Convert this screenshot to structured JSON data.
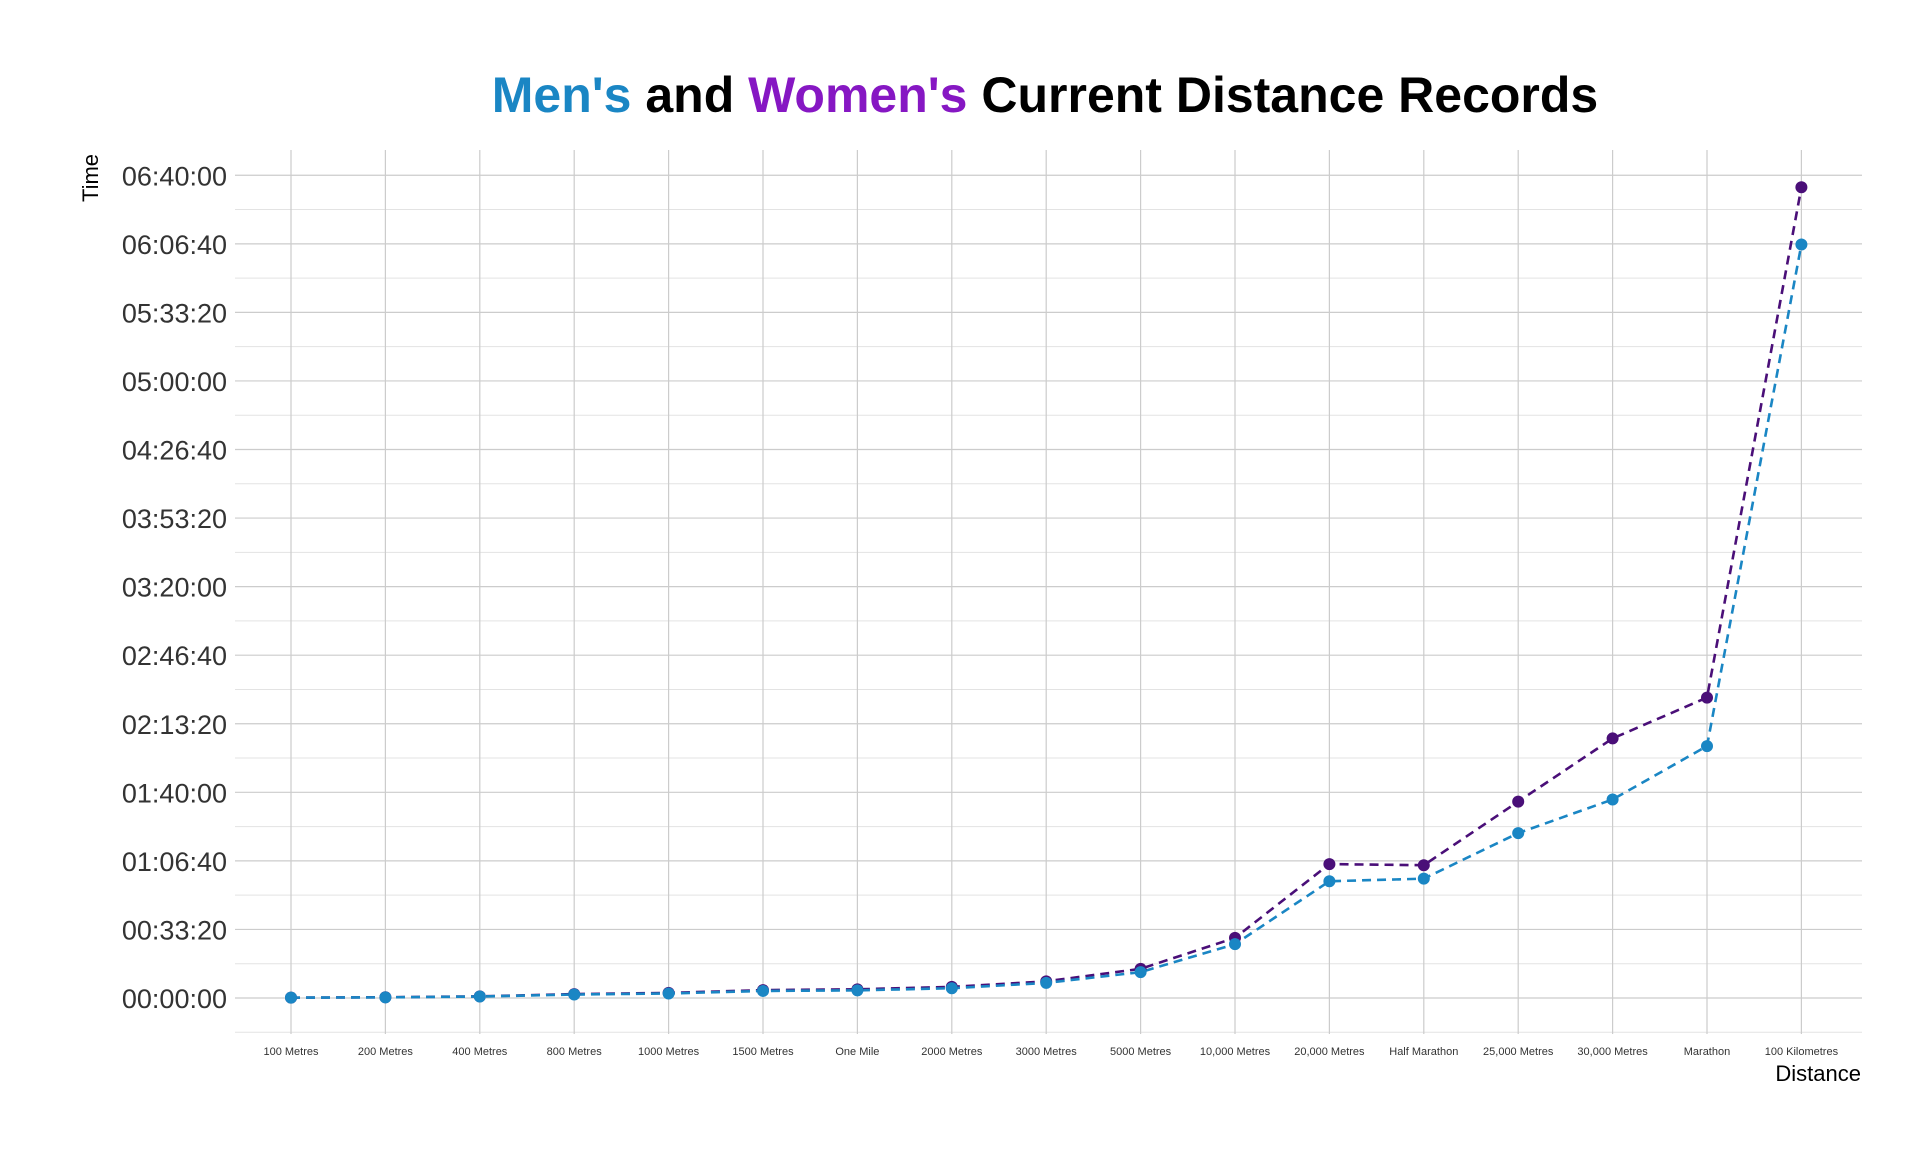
{
  "chart_data": {
    "type": "line",
    "title": {
      "part1": "Men's",
      "part2": " and ",
      "part3": "Women's",
      "part4": " Current Distance Records"
    },
    "xlabel": "Distance",
    "ylabel": "Time",
    "categories": [
      "100 Metres",
      "200 Metres",
      "400 Metres",
      "800 Metres",
      "1000 Metres",
      "1500 Metres",
      "One Mile",
      "2000 Metres",
      "3000 Metres",
      "5000 Metres",
      "10,000 Metres",
      "20,000 Metres",
      "Half Marathon",
      "25,000 Metres",
      "30,000 Metres",
      "Marathon",
      "100 Kilometres"
    ],
    "y_ticks": [
      "00:00:00",
      "00:33:20",
      "01:06:40",
      "01:40:00",
      "02:13:20",
      "02:46:40",
      "03:20:00",
      "03:53:20",
      "04:26:40",
      "05:00:00",
      "05:33:20",
      "06:06:40",
      "06:40:00"
    ],
    "ylim_seconds": [
      -1000,
      24800
    ],
    "grid": true,
    "series": [
      {
        "name": "Women's",
        "color": "#4a0f78",
        "line_style": "dashed",
        "values_seconds": [
          10,
          21,
          48,
          113,
          149,
          230,
          253,
          325,
          486,
          851,
          1754,
          3906,
          3874,
          5730,
          7572,
          8764,
          23650
        ]
      },
      {
        "name": "Men's",
        "color": "#1a86c4",
        "line_style": "dashed",
        "values_seconds": [
          10,
          19,
          43,
          101,
          132,
          206,
          223,
          285,
          441,
          755,
          1571,
          3406,
          3481,
          4810,
          5791,
          7349,
          21980
        ]
      }
    ],
    "title_colors": {
      "men": "#1a86c4",
      "women": "#8617c3",
      "rest": "#000000"
    }
  }
}
